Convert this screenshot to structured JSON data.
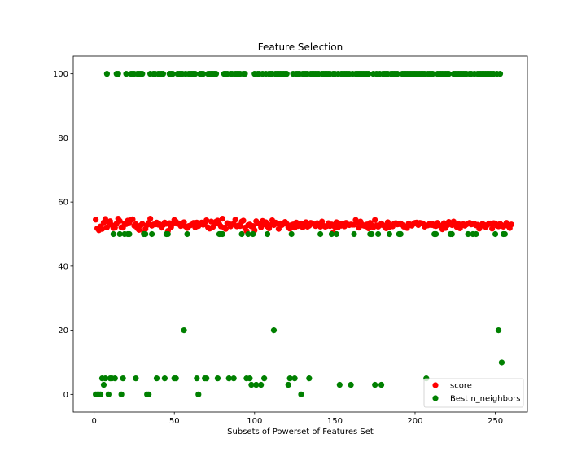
{
  "chart_data": {
    "type": "scatter",
    "title": "Feature Selection",
    "xlabel": "Subsets of Powerset of Features Set",
    "ylabel": "",
    "xlim": [
      -13,
      270
    ],
    "ylim": [
      -5.5,
      105.5
    ],
    "xticks": [
      0,
      50,
      100,
      150,
      200,
      250
    ],
    "yticks": [
      0,
      20,
      40,
      60,
      80,
      100
    ],
    "grid": false,
    "legend_position": "lower-right",
    "series": [
      {
        "name": "score",
        "color": "#ff0000",
        "x_range": [
          1,
          256
        ],
        "y": [
          54.5,
          51.8,
          51.2,
          52.4,
          51.6,
          53.6,
          54.7,
          52.1,
          53.7,
          54.0,
          52.8,
          51.9,
          52.0,
          53.3,
          54.8,
          54.1,
          52.1,
          52.0,
          53.3,
          53.1,
          54.2,
          53.6,
          54.4,
          54.6,
          52.6,
          53.1,
          51.8,
          51.3,
          52.7,
          53.2,
          50.3,
          51.6,
          52.8,
          53.5,
          54.8,
          52.6,
          53.0,
          53.0,
          53.6,
          52.9,
          53.0,
          52.0,
          52.8,
          53.6,
          53.2,
          51.0,
          53.4,
          52.2,
          53.3,
          54.4,
          53.9,
          53.2,
          53.3,
          52.5,
          53.2,
          53.7,
          52.4,
          51.9,
          52.5,
          52.7,
          52.9,
          53.5,
          52.1,
          53.6,
          52.5,
          53.0,
          53.6,
          52.9,
          53.5,
          54.3,
          52.1,
          51.7,
          53.9,
          52.2,
          53.0,
          53.9,
          54.2,
          53.1,
          52.4,
          54.8,
          52.0,
          51.6,
          53.4,
          53.2,
          52.4,
          53.0,
          53.2,
          54.5,
          52.4,
          52.7,
          52.5,
          53.9,
          54.2,
          52.0,
          51.0,
          52.8,
          53.0,
          52.4,
          52.5,
          51.2,
          54.0,
          53.4,
          53.3,
          52.1,
          54.1,
          53.0,
          53.7,
          52.4,
          51.8,
          52.8,
          54.3,
          52.8,
          53.6,
          53.3,
          51.6,
          53.3,
          52.8,
          53.2,
          53.8,
          53.2,
          52.2,
          51.7,
          52.8,
          53.0,
          52.0,
          53.6,
          52.5,
          52.8,
          53.3,
          52.1,
          53.0,
          53.7,
          52.3,
          52.6,
          53.5,
          53.3,
          53.0,
          52.5,
          53.4,
          53.1,
          52.3,
          53.9,
          52.6,
          52.3,
          52.5,
          53.4,
          52.5,
          53.0,
          50.5,
          52.2,
          53.7,
          52.1,
          53.3,
          52.6,
          53.3,
          52.4,
          53.5,
          52.9,
          52.8,
          53.0,
          52.9,
          52.9,
          54.4,
          53.6,
          52.0,
          53.9,
          53.0,
          52.6,
          52.5,
          53.0,
          51.8,
          53.5,
          52.8,
          52.1,
          54.4,
          52.7,
          52.3,
          52.7,
          53.3,
          52.8,
          52.4,
          51.8,
          53.7,
          52.2,
          52.6,
          52.4,
          53.3,
          53.4,
          53.0,
          53.1,
          53.3,
          52.9,
          52.3,
          52.4,
          51.9,
          53.3,
          52.8,
          52.6,
          53.2,
          53.5,
          53.6,
          52.8,
          53.5,
          53.4,
          53.2,
          52.3,
          52.6,
          52.7,
          53.2,
          52.8,
          53.1,
          52.6,
          52.5,
          53.5,
          52.7,
          52.6,
          51.5,
          53.4,
          51.9,
          52.7,
          53.8,
          53.4,
          52.8,
          53.9,
          52.8,
          52.2,
          53.2,
          51.8,
          52.7,
          53.1,
          52.6,
          53.0,
          53.3,
          53.5,
          53.0,
          53.1,
          53.2,
          52.7,
          52.9,
          51.7,
          52.5,
          53.2,
          52.9,
          52.2,
          52.8,
          53.3,
          53.3,
          51.7,
          53.4,
          53.3,
          52.6,
          52.4,
          53.2,
          52.8,
          52.3,
          52.7,
          53.5,
          52.5,
          51.9,
          53.0
        ]
      },
      {
        "name": "Best n_neighbors",
        "color": "#008000",
        "points": [
          [
            1,
            0
          ],
          [
            2,
            0
          ],
          [
            3,
            0
          ],
          [
            4,
            0
          ],
          [
            5,
            5
          ],
          [
            6,
            3
          ],
          [
            7,
            5
          ],
          [
            8,
            100
          ],
          [
            9,
            0
          ],
          [
            10,
            5
          ],
          [
            11,
            5
          ],
          [
            12,
            50
          ],
          [
            13,
            5
          ],
          [
            14,
            100
          ],
          [
            15,
            100
          ],
          [
            16,
            50
          ],
          [
            17,
            0
          ],
          [
            18,
            5
          ],
          [
            19,
            50
          ],
          [
            20,
            100
          ],
          [
            21,
            50
          ],
          [
            22,
            50
          ],
          [
            23,
            100
          ],
          [
            24,
            100
          ],
          [
            25,
            100
          ],
          [
            26,
            5
          ],
          [
            27,
            100
          ],
          [
            28,
            100
          ],
          [
            29,
            100
          ],
          [
            30,
            100
          ],
          [
            31,
            50
          ],
          [
            32,
            50
          ],
          [
            33,
            0
          ],
          [
            34,
            0
          ],
          [
            35,
            100
          ],
          [
            36,
            50
          ],
          [
            37,
            100
          ],
          [
            38,
            100
          ],
          [
            39,
            5
          ],
          [
            40,
            100
          ],
          [
            41,
            100
          ],
          [
            42,
            100
          ],
          [
            43,
            100
          ],
          [
            44,
            5
          ],
          [
            45,
            50
          ],
          [
            46,
            50
          ],
          [
            47,
            100
          ],
          [
            48,
            100
          ],
          [
            49,
            100
          ],
          [
            50,
            5
          ],
          [
            51,
            5
          ],
          [
            52,
            100
          ],
          [
            53,
            100
          ],
          [
            54,
            100
          ],
          [
            55,
            100
          ],
          [
            56,
            20
          ],
          [
            57,
            100
          ],
          [
            58,
            50
          ],
          [
            59,
            100
          ],
          [
            60,
            100
          ],
          [
            61,
            100
          ],
          [
            62,
            100
          ],
          [
            63,
            100
          ],
          [
            64,
            5
          ],
          [
            65,
            0
          ],
          [
            66,
            100
          ],
          [
            67,
            100
          ],
          [
            68,
            100
          ],
          [
            69,
            5
          ],
          [
            70,
            5
          ],
          [
            71,
            100
          ],
          [
            72,
            100
          ],
          [
            73,
            100
          ],
          [
            74,
            100
          ],
          [
            75,
            100
          ],
          [
            76,
            100
          ],
          [
            77,
            5
          ],
          [
            78,
            50
          ],
          [
            79,
            50
          ],
          [
            80,
            50
          ],
          [
            81,
            100
          ],
          [
            82,
            100
          ],
          [
            83,
            100
          ],
          [
            84,
            5
          ],
          [
            85,
            100
          ],
          [
            86,
            100
          ],
          [
            87,
            5
          ],
          [
            88,
            100
          ],
          [
            89,
            100
          ],
          [
            90,
            100
          ],
          [
            91,
            100
          ],
          [
            92,
            50
          ],
          [
            93,
            100
          ],
          [
            94,
            100
          ],
          [
            95,
            5
          ],
          [
            96,
            50
          ],
          [
            97,
            5
          ],
          [
            98,
            3
          ],
          [
            99,
            50
          ],
          [
            100,
            100
          ],
          [
            101,
            3
          ],
          [
            102,
            100
          ],
          [
            103,
            100
          ],
          [
            104,
            3
          ],
          [
            105,
            100
          ],
          [
            106,
            5
          ],
          [
            107,
            100
          ],
          [
            108,
            50
          ],
          [
            109,
            100
          ],
          [
            110,
            100
          ],
          [
            111,
            100
          ],
          [
            112,
            20
          ],
          [
            113,
            100
          ],
          [
            114,
            100
          ],
          [
            115,
            100
          ],
          [
            116,
            100
          ],
          [
            117,
            100
          ],
          [
            118,
            100
          ],
          [
            119,
            100
          ],
          [
            120,
            100
          ],
          [
            121,
            3
          ],
          [
            122,
            5
          ],
          [
            123,
            50
          ],
          [
            124,
            100
          ],
          [
            125,
            5
          ],
          [
            126,
            100
          ],
          [
            127,
            100
          ],
          [
            128,
            100
          ],
          [
            129,
            0
          ],
          [
            130,
            100
          ],
          [
            131,
            100
          ],
          [
            132,
            100
          ],
          [
            133,
            100
          ],
          [
            134,
            5
          ],
          [
            135,
            100
          ],
          [
            136,
            100
          ],
          [
            137,
            100
          ],
          [
            138,
            100
          ],
          [
            139,
            100
          ],
          [
            140,
            100
          ],
          [
            141,
            50
          ],
          [
            142,
            100
          ],
          [
            143,
            100
          ],
          [
            144,
            100
          ],
          [
            145,
            100
          ],
          [
            146,
            100
          ],
          [
            147,
            100
          ],
          [
            148,
            50
          ],
          [
            149,
            100
          ],
          [
            150,
            100
          ],
          [
            151,
            50
          ],
          [
            152,
            100
          ],
          [
            153,
            3
          ],
          [
            154,
            100
          ],
          [
            155,
            100
          ],
          [
            156,
            100
          ],
          [
            157,
            100
          ],
          [
            158,
            100
          ],
          [
            159,
            100
          ],
          [
            160,
            3
          ],
          [
            161,
            100
          ],
          [
            162,
            50
          ],
          [
            163,
            100
          ],
          [
            164,
            100
          ],
          [
            165,
            100
          ],
          [
            166,
            100
          ],
          [
            167,
            100
          ],
          [
            168,
            100
          ],
          [
            169,
            100
          ],
          [
            170,
            100
          ],
          [
            171,
            100
          ],
          [
            172,
            50
          ],
          [
            173,
            50
          ],
          [
            174,
            100
          ],
          [
            175,
            3
          ],
          [
            176,
            100
          ],
          [
            177,
            50
          ],
          [
            178,
            100
          ],
          [
            179,
            3
          ],
          [
            180,
            100
          ],
          [
            181,
            100
          ],
          [
            182,
            100
          ],
          [
            183,
            100
          ],
          [
            184,
            50
          ],
          [
            185,
            100
          ],
          [
            186,
            100
          ],
          [
            187,
            100
          ],
          [
            188,
            100
          ],
          [
            189,
            100
          ],
          [
            190,
            50
          ],
          [
            191,
            50
          ],
          [
            192,
            100
          ],
          [
            193,
            100
          ],
          [
            194,
            100
          ],
          [
            195,
            100
          ],
          [
            196,
            100
          ],
          [
            197,
            100
          ],
          [
            198,
            100
          ],
          [
            199,
            100
          ],
          [
            200,
            100
          ],
          [
            201,
            100
          ],
          [
            202,
            100
          ],
          [
            203,
            100
          ],
          [
            204,
            100
          ],
          [
            205,
            100
          ],
          [
            206,
            100
          ],
          [
            207,
            5
          ],
          [
            208,
            100
          ],
          [
            209,
            100
          ],
          [
            210,
            100
          ],
          [
            211,
            100
          ],
          [
            212,
            50
          ],
          [
            213,
            50
          ],
          [
            214,
            100
          ],
          [
            215,
            100
          ],
          [
            216,
            100
          ],
          [
            217,
            100
          ],
          [
            218,
            100
          ],
          [
            219,
            100
          ],
          [
            220,
            100
          ],
          [
            221,
            100
          ],
          [
            222,
            50
          ],
          [
            223,
            50
          ],
          [
            224,
            100
          ],
          [
            225,
            100
          ],
          [
            226,
            100
          ],
          [
            227,
            100
          ],
          [
            228,
            100
          ],
          [
            229,
            100
          ],
          [
            230,
            100
          ],
          [
            231,
            100
          ],
          [
            232,
            100
          ],
          [
            233,
            50
          ],
          [
            234,
            100
          ],
          [
            235,
            100
          ],
          [
            236,
            50
          ],
          [
            237,
            100
          ],
          [
            238,
            50
          ],
          [
            239,
            100
          ],
          [
            240,
            100
          ],
          [
            241,
            100
          ],
          [
            242,
            100
          ],
          [
            243,
            100
          ],
          [
            244,
            100
          ],
          [
            245,
            100
          ],
          [
            246,
            100
          ],
          [
            247,
            100
          ],
          [
            248,
            100
          ],
          [
            249,
            100
          ],
          [
            250,
            50
          ],
          [
            251,
            100
          ],
          [
            252,
            20
          ],
          [
            253,
            100
          ],
          [
            254,
            10
          ],
          [
            255,
            50
          ],
          [
            256,
            50
          ]
        ]
      }
    ]
  }
}
